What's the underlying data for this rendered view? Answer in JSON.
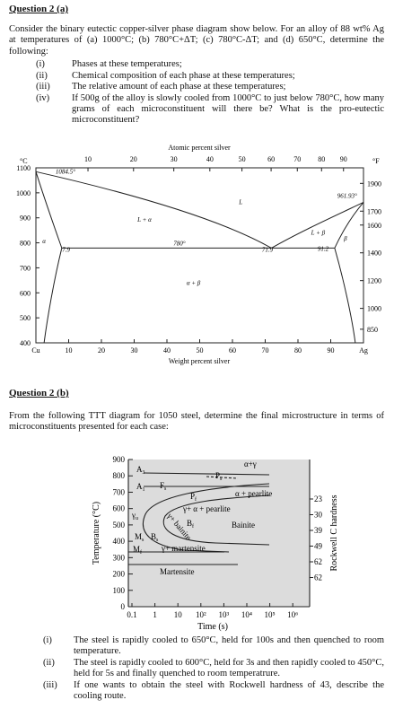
{
  "question_a": {
    "title": "Question 2 (a)",
    "intro": "Consider the binary eutectic copper-silver phase diagram show below. For an alloy of 88 wt% Ag at temperatures of (a) 1000°C; (b) 780°C+ΔT; (c) 780°C-ΔT; and (d) 650°C, determine the following:",
    "items": [
      {
        "marker": "(i)",
        "text": "Phases at these temperatures;"
      },
      {
        "marker": "(ii)",
        "text": "Chemical composition of each phase at these temperatures;"
      },
      {
        "marker": "(iii)",
        "text": "The relative amount of each phase at these temperatures;"
      },
      {
        "marker": "(iv)",
        "text": "If 500g of the alloy is slowly cooled from 1000°C to just below 780°C, how many grams of each microconstituent will there be? What is the pro-eutectic microconstituent?"
      }
    ]
  },
  "phase_diagram": {
    "top_axis_label": "Atomic percent silver",
    "top_ticks": [
      "10",
      "20",
      "30",
      "40",
      "50",
      "60",
      "70",
      "80",
      "90"
    ],
    "left_unit": "°C",
    "left_ticks": [
      "1100",
      "1000",
      "900",
      "800",
      "700",
      "600",
      "500",
      "400"
    ],
    "right_unit": "°F",
    "right_ticks": [
      "1900",
      "1700",
      "1600",
      "1400",
      "1200",
      "1000",
      "850"
    ],
    "bottom_ticks": [
      "Cu",
      "10",
      "20",
      "30",
      "40",
      "50",
      "60",
      "70",
      "80",
      "90",
      "Ag"
    ],
    "bottom_axis_label": "Weight percent silver",
    "labels": [
      "1084.5°",
      "L",
      "L + α",
      "961.93°",
      "L + β",
      "β",
      "780°",
      "7.9",
      "71.9",
      "91.2",
      "α",
      "α + β"
    ]
  },
  "question_b": {
    "title": "Question 2 (b)",
    "intro": "From the following TTT diagram for 1050 steel, determine the final microstructure in terms of microconstituents presented for each case:",
    "items": [
      {
        "marker": "(i)",
        "text": "The steel is rapidly cooled to 650°C, held for 100s and then quenched to room temperature."
      },
      {
        "marker": "(ii)",
        "text": "The steel is rapidly cooled to 600°C, held for 3s and then rapidly cooled to 450°C, held for 5s and finally quenched to room temperatrure."
      },
      {
        "marker": "(iii)",
        "text": "If one wants to obtain the steel with Rockwell hardness of 43, describe the cooling route."
      }
    ]
  },
  "ttt_diagram": {
    "y_axis_label": "Temperature (°C)",
    "y_ticks": [
      "900",
      "800",
      "700",
      "600",
      "500",
      "400",
      "300",
      "200",
      "100",
      "0"
    ],
    "x_axis_label": "Time (s)",
    "x_ticks": [
      "0.1",
      "1",
      "10",
      "10²",
      "10³",
      "10⁴",
      "10⁵",
      "10⁶"
    ],
    "right_axis_label": "Rockwell C hardness",
    "hardness": [
      "23",
      "30",
      "39",
      "49",
      "62",
      "62"
    ],
    "labels": [
      {
        "main": "A",
        "sub": "3"
      },
      {
        "main": "A",
        "sub": "1"
      },
      {
        "main": "F",
        "sub": "s"
      },
      {
        "main": "α+γ"
      },
      {
        "main": "P",
        "sub": "s"
      },
      {
        "main": "P",
        "sub": "f"
      },
      {
        "main": "α + pearlite"
      },
      {
        "main": "γ+ α + pearlite"
      },
      {
        "main": "B",
        "sub": "f"
      },
      {
        "main": "Bainite"
      },
      {
        "main": "γ+ bainite"
      },
      {
        "main": "γ",
        "sub": "u"
      },
      {
        "main": "M",
        "sub": "s"
      },
      {
        "main": "B",
        "sub": "s"
      },
      {
        "main": "M",
        "sub": "f"
      },
      {
        "main": "γ+ martensite"
      },
      {
        "main": "Martensite"
      }
    ]
  }
}
